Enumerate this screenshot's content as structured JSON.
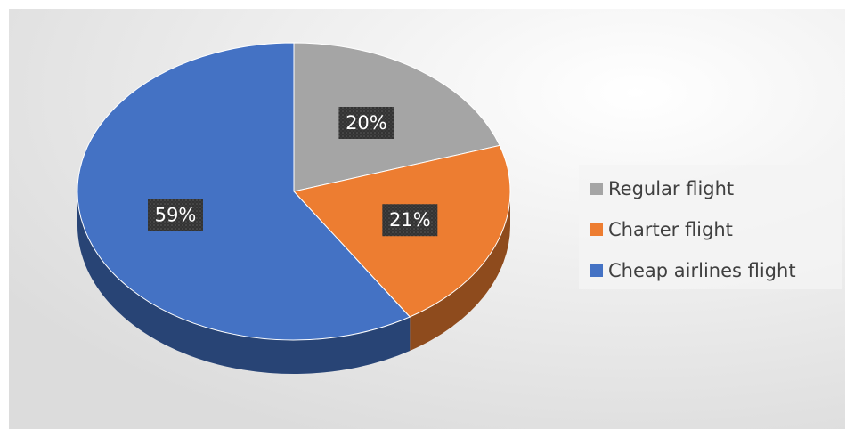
{
  "chart_data": {
    "type": "pie",
    "categories": [
      "Regular flight",
      "Charter flight",
      "Cheap airlines flight"
    ],
    "values": [
      20,
      21,
      59
    ],
    "value_labels": [
      "20%",
      "21%",
      "59%"
    ],
    "colors": [
      "#a5a5a5",
      "#ed7d31",
      "#4472c4"
    ],
    "legend": "right"
  }
}
